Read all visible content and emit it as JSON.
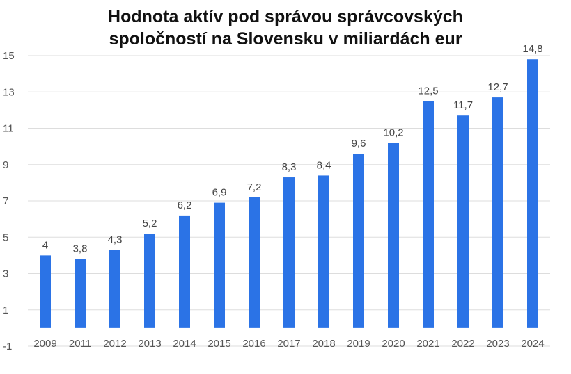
{
  "chart_data": {
    "type": "bar",
    "title_lines": [
      "Hodnota aktív pod správou správcovských",
      "spoločností na Slovensku v miliardách eur"
    ],
    "categories": [
      "2009",
      "2011",
      "2012",
      "2013",
      "2014",
      "2015",
      "2016",
      "2017",
      "2018",
      "2019",
      "2020",
      "2021",
      "2022",
      "2023",
      "2024"
    ],
    "values": [
      4,
      3.8,
      4.3,
      5.2,
      6.2,
      6.9,
      7.2,
      8.3,
      8.4,
      9.6,
      10.2,
      12.5,
      11.7,
      12.7,
      14.8
    ],
    "data_labels": [
      "4",
      "3,8",
      "4,3",
      "5,2",
      "6,2",
      "6,9",
      "7,2",
      "8,3",
      "8,4",
      "9,6",
      "10,2",
      "12,5",
      "11,7",
      "12,7",
      "14,8"
    ],
    "y_ticks": [
      -1,
      1,
      3,
      5,
      7,
      9,
      11,
      13,
      15
    ],
    "y_tick_labels": [
      "-1",
      "1",
      "3",
      "5",
      "7",
      "9",
      "11",
      "13",
      "15"
    ],
    "ylim": [
      -1,
      15
    ],
    "bar_baseline": 0,
    "grid": true,
    "legend": "none",
    "bar_color": "#2b73e6",
    "grid_color": "#dddddd"
  }
}
